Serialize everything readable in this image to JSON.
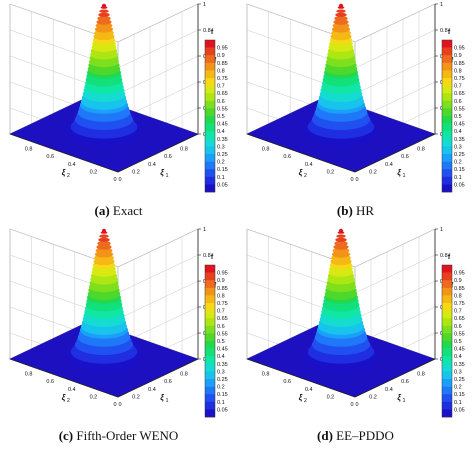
{
  "chart_data": [
    {
      "type": "surface",
      "caption_letter": "(a)",
      "caption_text": "Exact",
      "zlabel": "f",
      "x1_label": "ξ",
      "x1_sub": "1",
      "x2_label": "ξ",
      "x2_sub": "2",
      "z_ticks": [
        "0",
        "0.2",
        "0.4",
        "0.6",
        "0.8",
        "1"
      ],
      "x1_ticks": [
        "0",
        "0.2",
        "0.4",
        "0.6",
        "0.8"
      ],
      "x2_ticks": [
        "0",
        "0.2",
        "0.4",
        "0.6",
        "0.8"
      ],
      "peak": {
        "x1": 0.5,
        "x2": 0.5,
        "f": 1.0
      },
      "colorbar_title": "f",
      "colorbar_levels": [
        "0.95",
        "0.9",
        "0.85",
        "0.8",
        "0.75",
        "0.7",
        "0.65",
        "0.6",
        "0.55",
        "0.5",
        "0.45",
        "0.4",
        "0.35",
        "0.3",
        "0.25",
        "0.2",
        "0.15",
        "0.1",
        "0.05"
      ]
    },
    {
      "type": "surface",
      "caption_letter": "(b)",
      "caption_text": "HR",
      "zlabel": "f",
      "x1_label": "ξ",
      "x1_sub": "1",
      "x2_label": "ξ",
      "x2_sub": "2",
      "z_ticks": [
        "0",
        "0.2",
        "0.4",
        "0.6",
        "0.8",
        "1"
      ],
      "x1_ticks": [
        "0",
        "0.2",
        "0.4",
        "0.6",
        "0.8"
      ],
      "x2_ticks": [
        "0",
        "0.2",
        "0.4",
        "0.6",
        "0.8"
      ],
      "peak": {
        "x1": 0.5,
        "x2": 0.5,
        "f": 1.0
      },
      "colorbar_title": "f",
      "colorbar_levels": [
        "0.95",
        "0.9",
        "0.85",
        "0.8",
        "0.75",
        "0.7",
        "0.65",
        "0.6",
        "0.55",
        "0.5",
        "0.45",
        "0.4",
        "0.35",
        "0.3",
        "0.25",
        "0.2",
        "0.15",
        "0.1",
        "0.05"
      ]
    },
    {
      "type": "surface",
      "caption_letter": "(c)",
      "caption_text": "Fifth-Order WENO",
      "zlabel": "f",
      "x1_label": "ξ",
      "x1_sub": "1",
      "x2_label": "ξ",
      "x2_sub": "2",
      "z_ticks": [
        "0",
        "0.2",
        "0.4",
        "0.6",
        "0.8",
        "1"
      ],
      "x1_ticks": [
        "0",
        "0.2",
        "0.4",
        "0.6",
        "0.8"
      ],
      "x2_ticks": [
        "0",
        "0.2",
        "0.4",
        "0.6",
        "0.8"
      ],
      "peak": {
        "x1": 0.5,
        "x2": 0.5,
        "f": 1.0
      },
      "colorbar_title": "f",
      "colorbar_levels": [
        "0.95",
        "0.9",
        "0.85",
        "0.8",
        "0.75",
        "0.7",
        "0.65",
        "0.6",
        "0.55",
        "0.5",
        "0.45",
        "0.4",
        "0.35",
        "0.3",
        "0.25",
        "0.2",
        "0.15",
        "0.1",
        "0.05"
      ]
    },
    {
      "type": "surface",
      "caption_letter": "(d)",
      "caption_text": "EE–PDDO",
      "zlabel": "f",
      "x1_label": "ξ",
      "x1_sub": "1",
      "x2_label": "ξ",
      "x2_sub": "2",
      "z_ticks": [
        "0",
        "0.2",
        "0.4",
        "0.6",
        "0.8",
        "1"
      ],
      "x1_ticks": [
        "0",
        "0.2",
        "0.4",
        "0.6",
        "0.8"
      ],
      "x2_ticks": [
        "0",
        "0.2",
        "0.4",
        "0.6",
        "0.8"
      ],
      "peak": {
        "x1": 0.5,
        "x2": 0.5,
        "f": 1.0
      },
      "colorbar_title": "f",
      "colorbar_levels": [
        "0.95",
        "0.9",
        "0.85",
        "0.8",
        "0.75",
        "0.7",
        "0.65",
        "0.6",
        "0.55",
        "0.5",
        "0.45",
        "0.4",
        "0.35",
        "0.3",
        "0.25",
        "0.2",
        "0.15",
        "0.1",
        "0.05"
      ]
    }
  ],
  "colors": {
    "colormap": [
      "#1a10c8",
      "#1e2ee0",
      "#2050f0",
      "#1e78f8",
      "#1aa0f8",
      "#18c4ee",
      "#14dcd0",
      "#10e6a6",
      "#12e07a",
      "#22d84e",
      "#4ed82c",
      "#7ee01c",
      "#aee614",
      "#d8e812",
      "#f6d814",
      "#f6b814",
      "#f29418",
      "#ee6a1c",
      "#e8401e",
      "#e0141e"
    ],
    "base_plane": "#1c10c0",
    "grid": "#c8c8c8",
    "axis": "#222222"
  }
}
